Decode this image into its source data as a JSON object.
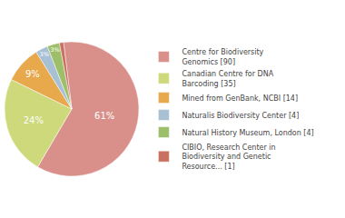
{
  "chart_data": {
    "type": "pie",
    "categories": [
      "Centre for Biodiversity\nGenomics [90]",
      "Canadian Centre for DNA\nBarcoding [35]",
      "Mined from GenBank, NCBI [14]",
      "Naturalis Biodiversity Center [4]",
      "Natural History Museum, London [4]",
      "CIBIO, Research Center in\nBiodiversity and Genetic\nResource... [1]"
    ],
    "values": [
      61,
      24,
      9,
      3,
      3,
      1
    ],
    "value_labels": [
      "61%",
      "24%",
      "9%",
      "3%",
      "3%",
      null
    ],
    "colors": [
      "#d9908a",
      "#cdd97a",
      "#e8a84c",
      "#a8c0d4",
      "#9dbf6a",
      "#c97060"
    ],
    "data_labels": true,
    "legend": "right"
  }
}
